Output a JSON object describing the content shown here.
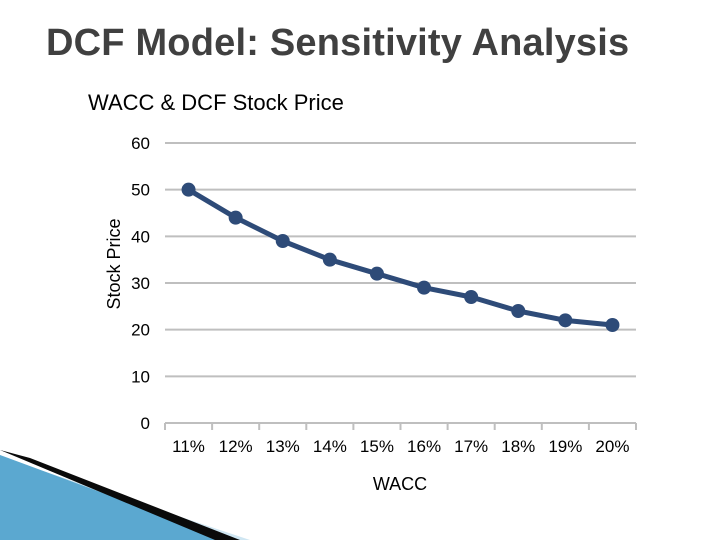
{
  "slide": {
    "title": "DCF Model: Sensitivity Analysis"
  },
  "colors": {
    "series": "#2e4b78",
    "grid": "#bfbfbf",
    "decor_dark": "#0a0a0a",
    "decor_blue": "#5ba8d0",
    "decor_light": "#cfe6f2"
  },
  "chart_data": {
    "type": "line",
    "title": "WACC & DCF Stock Price",
    "xlabel": "WACC",
    "ylabel": "Stock Price",
    "categories": [
      "11%",
      "12%",
      "13%",
      "14%",
      "15%",
      "16%",
      "17%",
      "18%",
      "19%",
      "20%"
    ],
    "series": [
      {
        "values": [
          50,
          44,
          39,
          35,
          32,
          29,
          27,
          24,
          22,
          21
        ]
      }
    ],
    "yticks": [
      0,
      10,
      20,
      30,
      40,
      50,
      60
    ],
    "ylim": [
      0,
      60
    ],
    "grid": true,
    "legend": "none"
  }
}
